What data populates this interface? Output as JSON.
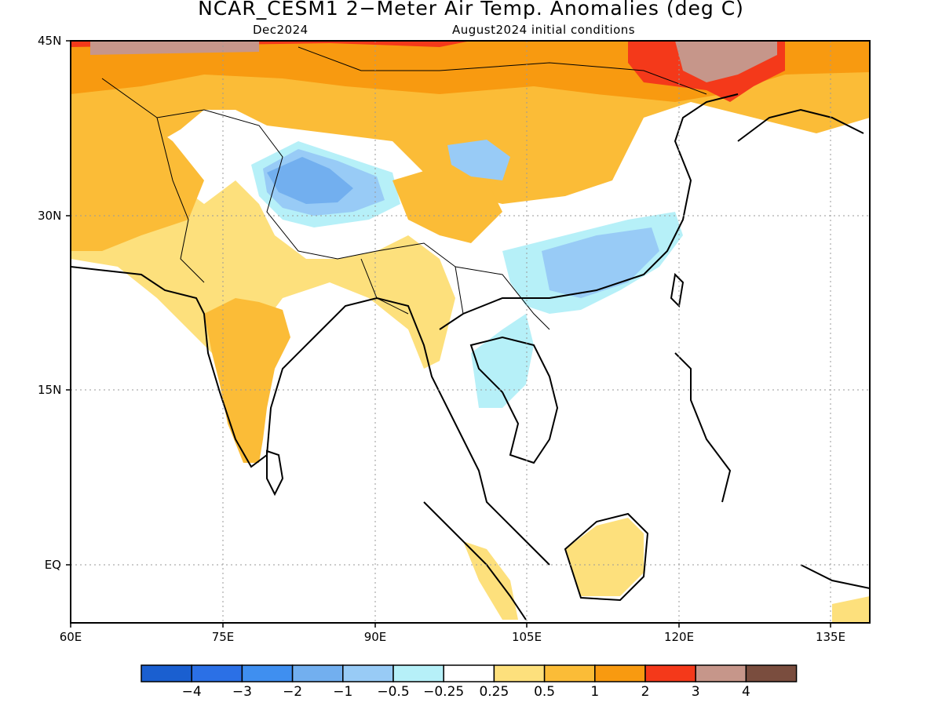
{
  "title": "NCAR_CESM1 2−Meter Air Temp. Anomalies (deg C)",
  "subtitle_left": "Dec2024",
  "subtitle_right": "August2024 initial conditions",
  "lat_ticks": [
    "45N",
    "30N",
    "15N",
    "EQ"
  ],
  "lon_ticks": [
    "60E",
    "75E",
    "90E",
    "105E",
    "120E",
    "135E"
  ],
  "colorbar": {
    "colors": [
      "#1a5fd0",
      "#2b70e6",
      "#3f8ff0",
      "#72afef",
      "#98cbf6",
      "#b6f0f8",
      "#ffffff",
      "#fde07c",
      "#fbbc37",
      "#f89a10",
      "#f4391a",
      "#c6968a",
      "#7a4d3e"
    ],
    "labels": [
      "−4",
      "−3",
      "−2",
      "−1",
      "−0.5",
      "−0.25",
      "0.25",
      "0.5",
      "1",
      "2",
      "3",
      "4"
    ]
  }
}
